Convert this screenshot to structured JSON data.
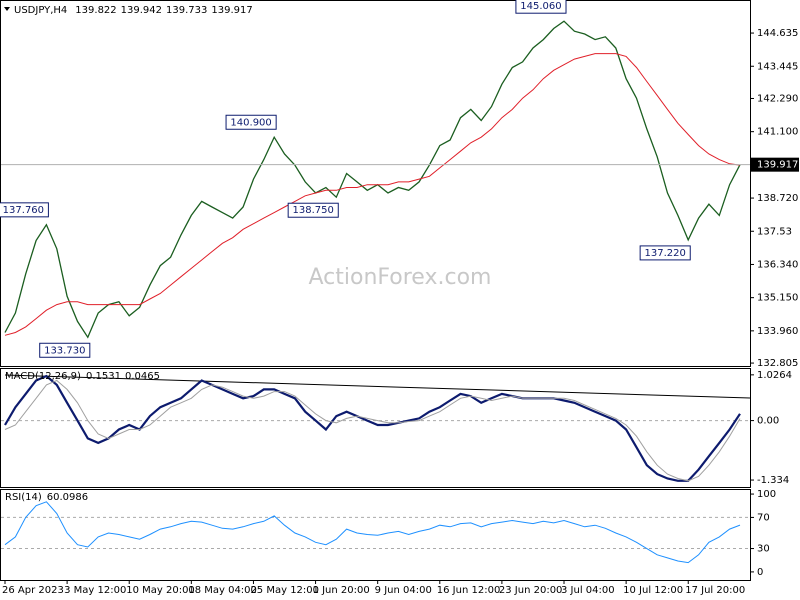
{
  "chart_data": [
    {
      "type": "line",
      "symbol": "USDJPY,H4",
      "ohlc": [
        139.822,
        139.942,
        139.733,
        139.917
      ],
      "watermark": "ActionForex.com",
      "categories": [
        "26 Apr 2023",
        null,
        null,
        null,
        null,
        null,
        "3 May 12:00",
        null,
        null,
        null,
        null,
        null,
        "10 May 20:00",
        null,
        null,
        null,
        null,
        null,
        "18 May 04:00",
        null,
        null,
        null,
        null,
        null,
        "25 May 12:00",
        null,
        null,
        null,
        null,
        null,
        "1 Jun 20:00",
        null,
        null,
        null,
        null,
        null,
        "9 Jun 04:00",
        null,
        null,
        null,
        null,
        null,
        "16 Jun 12:00",
        null,
        null,
        null,
        null,
        null,
        "23 Jun 20:00",
        null,
        null,
        null,
        null,
        null,
        "3 Jul 04:00",
        null,
        null,
        null,
        null,
        null,
        "10 Jul 12:00",
        null,
        null,
        null,
        null,
        null,
        "17 Jul 20:00",
        null,
        null,
        null,
        null,
        null
      ],
      "series": [
        {
          "color": "#1b5e20",
          "width": 1.3,
          "values": [
            133.9,
            134.6,
            136.0,
            137.2,
            137.76,
            136.9,
            135.2,
            134.3,
            133.73,
            134.6,
            134.9,
            135.0,
            134.5,
            134.8,
            135.6,
            136.3,
            136.6,
            137.4,
            138.1,
            138.6,
            138.4,
            138.2,
            138.0,
            138.4,
            139.4,
            140.1,
            140.9,
            140.3,
            139.9,
            139.3,
            138.9,
            139.1,
            138.75,
            139.6,
            139.3,
            139.0,
            139.2,
            138.9,
            139.1,
            139.0,
            139.3,
            139.9,
            140.6,
            140.8,
            141.6,
            141.9,
            141.5,
            142.0,
            142.8,
            143.4,
            143.6,
            144.1,
            144.4,
            144.8,
            145.06,
            144.7,
            144.6,
            144.4,
            144.5,
            144.1,
            143.0,
            142.3,
            141.2,
            140.2,
            138.9,
            138.1,
            137.22,
            138.0,
            138.5,
            138.1,
            139.2,
            139.917
          ]
        },
        {
          "color": "#e0202a",
          "width": 1,
          "values": [
            133.8,
            133.9,
            134.1,
            134.4,
            134.7,
            134.9,
            135.0,
            135.0,
            134.9,
            134.9,
            134.9,
            134.9,
            134.9,
            134.9,
            135.1,
            135.3,
            135.6,
            135.9,
            136.2,
            136.5,
            136.8,
            137.1,
            137.3,
            137.6,
            137.8,
            138.0,
            138.2,
            138.4,
            138.6,
            138.8,
            138.9,
            139.0,
            139.0,
            139.1,
            139.1,
            139.2,
            139.2,
            139.2,
            139.3,
            139.3,
            139.4,
            139.5,
            139.8,
            140.1,
            140.4,
            140.7,
            140.9,
            141.2,
            141.6,
            141.9,
            142.3,
            142.6,
            143.0,
            143.3,
            143.5,
            143.7,
            143.8,
            143.9,
            143.9,
            143.9,
            143.8,
            143.4,
            142.9,
            142.4,
            141.9,
            141.4,
            141.0,
            140.6,
            140.3,
            140.1,
            139.95,
            139.9
          ]
        }
      ],
      "current_price": 139.917,
      "annotations": [
        {
          "value": 137.76,
          "label": "137.760"
        },
        {
          "value": 133.73,
          "label": "133.730"
        },
        {
          "value": 140.9,
          "label": "140.900"
        },
        {
          "value": 138.75,
          "label": "138.750"
        },
        {
          "value": 145.06,
          "label": "145.060"
        },
        {
          "value": 137.22,
          "label": "137.220"
        }
      ],
      "ylim": [
        132.7,
        145.82
      ],
      "yticks": [
        144.635,
        143.445,
        {
          "value": 142.29,
          "label": "142.290"
        },
        {
          "value": 141.1,
          "label": "141.100"
        },
        {
          "value": 138.72,
          "label": "138.720"
        },
        137.53,
        {
          "value": 136.34,
          "label": "136.340"
        },
        {
          "value": 135.15,
          "label": "135.150"
        },
        {
          "value": 133.96,
          "label": "133.960"
        },
        132.805
      ]
    },
    {
      "type": "line",
      "title": "MACD(12,26,9)",
      "series": [
        {
          "color": "#0d1b6e",
          "width": 2.2,
          "values": [
            -0.1,
            0.3,
            0.6,
            0.9,
            1.0,
            0.8,
            0.4,
            0.0,
            -0.4,
            -0.5,
            -0.4,
            -0.2,
            -0.1,
            -0.2,
            0.1,
            0.3,
            0.4,
            0.5,
            0.7,
            0.9,
            0.8,
            0.7,
            0.6,
            0.5,
            0.55,
            0.7,
            0.7,
            0.6,
            0.5,
            0.2,
            0.0,
            -0.2,
            0.1,
            0.2,
            0.1,
            0.0,
            -0.1,
            -0.1,
            -0.05,
            0.0,
            0.05,
            0.2,
            0.3,
            0.45,
            0.6,
            0.55,
            0.4,
            0.5,
            0.6,
            0.55,
            0.5,
            0.5,
            0.5,
            0.5,
            0.45,
            0.4,
            0.3,
            0.2,
            0.1,
            0.0,
            -0.2,
            -0.6,
            -1.0,
            -1.2,
            -1.3,
            -1.35,
            -1.35,
            -1.1,
            -0.8,
            -0.5,
            -0.2,
            0.1531
          ]
        },
        {
          "color": "#a0a0a0",
          "width": 1,
          "values": [
            -0.2,
            -0.1,
            0.2,
            0.5,
            0.8,
            0.9,
            0.7,
            0.4,
            0.0,
            -0.3,
            -0.4,
            -0.3,
            -0.2,
            -0.2,
            -0.1,
            0.1,
            0.3,
            0.4,
            0.5,
            0.7,
            0.8,
            0.75,
            0.65,
            0.55,
            0.5,
            0.55,
            0.65,
            0.65,
            0.55,
            0.35,
            0.15,
            0.0,
            -0.05,
            0.05,
            0.1,
            0.05,
            0.0,
            -0.05,
            -0.05,
            -0.02,
            0.0,
            0.1,
            0.2,
            0.35,
            0.5,
            0.55,
            0.5,
            0.45,
            0.5,
            0.55,
            0.5,
            0.5,
            0.5,
            0.5,
            0.5,
            0.45,
            0.35,
            0.25,
            0.15,
            0.05,
            -0.1,
            -0.35,
            -0.7,
            -1.0,
            -1.2,
            -1.3,
            -1.35,
            -1.25,
            -1.0,
            -0.7,
            -0.35,
            0.0465
          ]
        }
      ],
      "ylim": [
        -1.49,
        1.18
      ],
      "yticks": [
        1.0264,
        {
          "value": 0,
          "label": "0.00"
        },
        -1.334
      ],
      "levels": [
        0
      ]
    },
    {
      "type": "line",
      "title": "RSI(14)",
      "series": [
        {
          "color": "#1e90ff",
          "width": 1,
          "values": [
            35,
            45,
            70,
            85,
            90,
            75,
            50,
            35,
            32,
            45,
            50,
            48,
            45,
            42,
            48,
            55,
            58,
            62,
            65,
            64,
            60,
            56,
            55,
            58,
            62,
            65,
            72,
            60,
            50,
            45,
            38,
            35,
            42,
            55,
            50,
            48,
            47,
            50,
            52,
            48,
            52,
            55,
            60,
            58,
            62,
            63,
            58,
            62,
            64,
            66,
            64,
            62,
            65,
            63,
            66,
            62,
            58,
            60,
            56,
            50,
            45,
            38,
            30,
            22,
            18,
            14,
            12,
            22,
            38,
            45,
            55,
            60.0986
          ]
        }
      ],
      "ylim": [
        -10.4,
        106.5
      ],
      "yticks": [
        100,
        70,
        30,
        0
      ],
      "levels": [
        70,
        30
      ]
    }
  ]
}
